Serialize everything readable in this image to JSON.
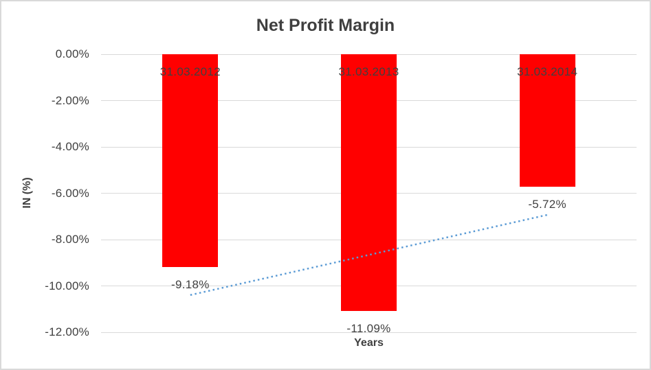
{
  "chart_data": {
    "type": "bar",
    "title": "Net Profit Margin",
    "xlabel": "Years",
    "ylabel": "IN (%)",
    "categories": [
      "31.03.2012",
      "31.03.2013",
      "31.03.2014"
    ],
    "values": [
      -9.18,
      -11.09,
      -5.72
    ],
    "value_labels": [
      "-9.18%",
      "-11.09%",
      "-5.72%"
    ],
    "ytick_values": [
      0,
      -2,
      -4,
      -6,
      -8,
      -10,
      -12
    ],
    "ytick_labels": [
      "0.00%",
      "-2.00%",
      "-4.00%",
      "-6.00%",
      "-8.00%",
      "-10.00%",
      "-12.00%"
    ],
    "ylim": [
      -12,
      0
    ],
    "grid": true,
    "legend": false,
    "bar_color": "#FF0000",
    "category_label_position": "inside-end",
    "value_label_position": "outside-end",
    "trendline": {
      "type": "linear",
      "style": "dotted",
      "color": "#5B9BD5"
    },
    "colors": {
      "text": "#404040",
      "title": "#3F3F3F",
      "gridline": "#D9D9D9",
      "border": "#D9D9D9",
      "background": "#FFFFFF"
    }
  }
}
